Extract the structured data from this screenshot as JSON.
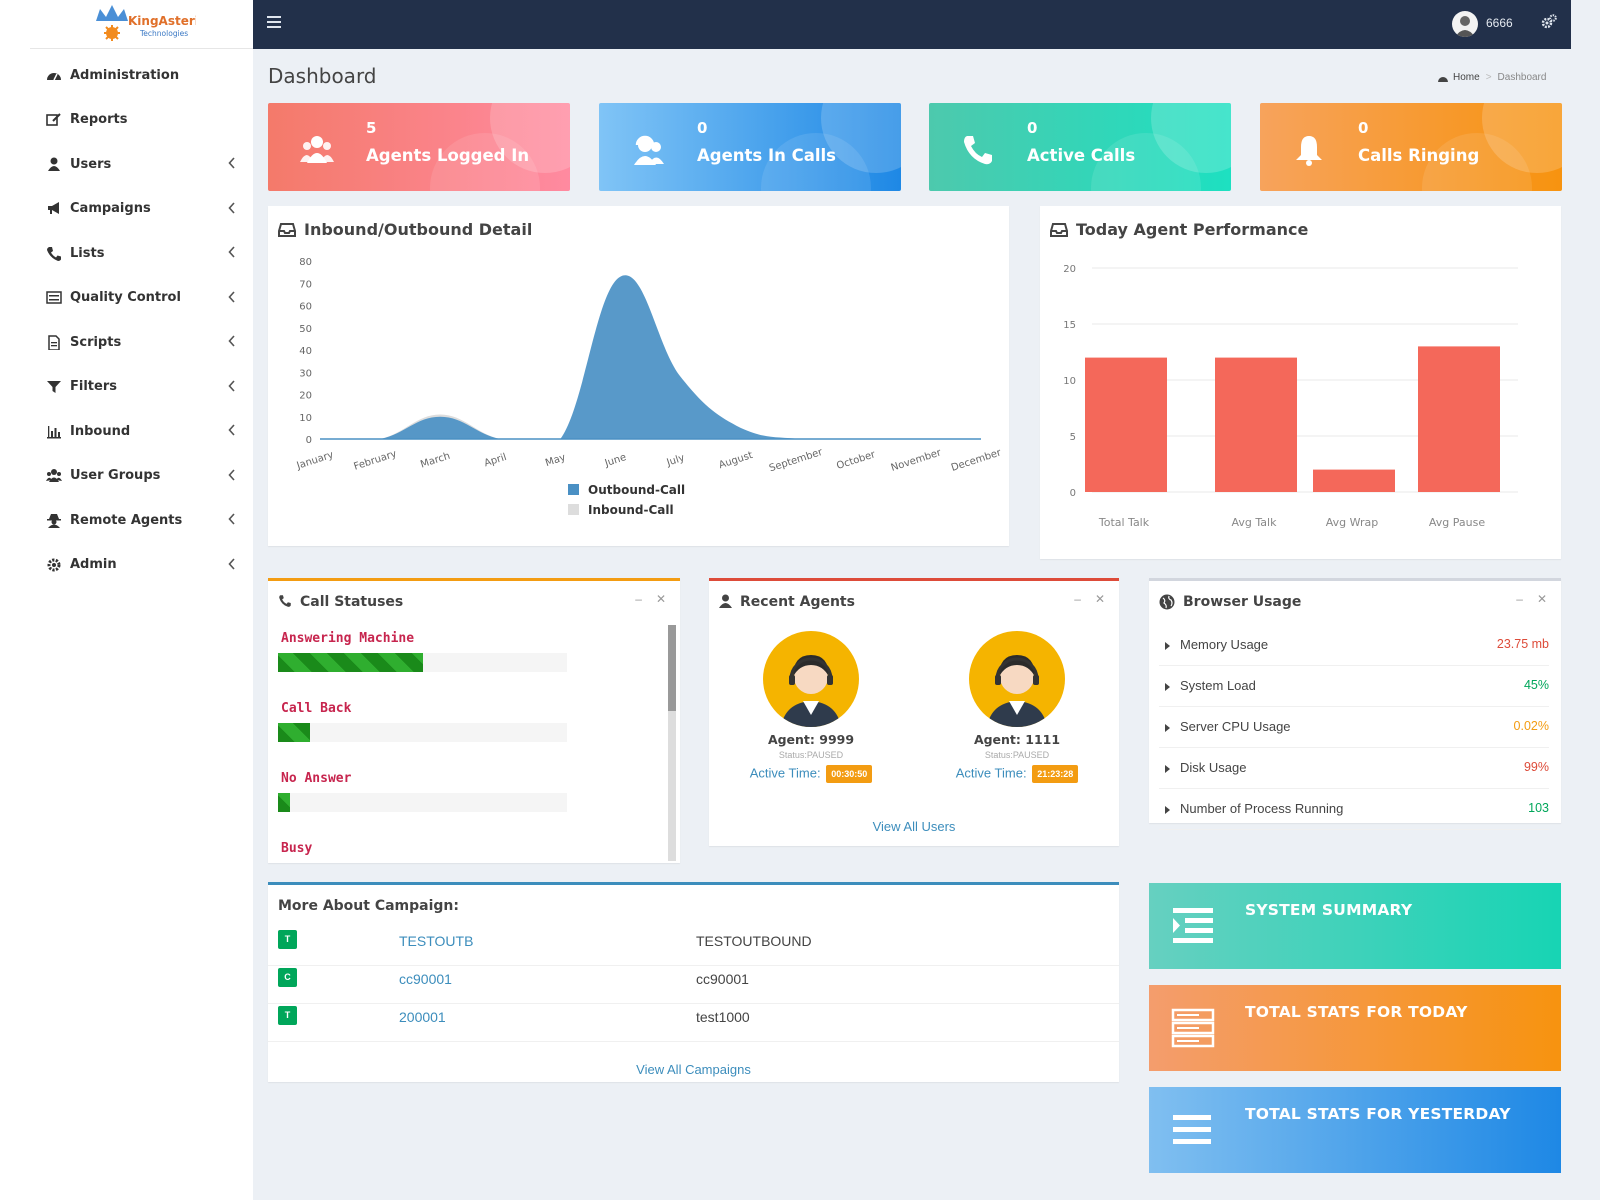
{
  "app": {
    "logo_text": "KingAsterisk",
    "logo_subtext": "Technologies",
    "user": "6666",
    "colors": {
      "topbar": "#22304a",
      "sidebar": "#ffffff",
      "link": "#3c8dbc",
      "accent_red": "#f4685a"
    }
  },
  "sidebar": {
    "items": [
      {
        "label": "Administration",
        "icon": "dashboard-icon",
        "has_submenu": false
      },
      {
        "label": "Reports",
        "icon": "edit-icon",
        "has_submenu": false
      },
      {
        "label": "Users",
        "icon": "user-icon",
        "has_submenu": true
      },
      {
        "label": "Campaigns",
        "icon": "bullhorn-icon",
        "has_submenu": true
      },
      {
        "label": "Lists",
        "icon": "phone-icon",
        "has_submenu": true
      },
      {
        "label": "Quality Control",
        "icon": "list-icon",
        "has_submenu": true
      },
      {
        "label": "Scripts",
        "icon": "file-icon",
        "has_submenu": true
      },
      {
        "label": "Filters",
        "icon": "filter-icon",
        "has_submenu": true
      },
      {
        "label": "Inbound",
        "icon": "bar-chart-icon",
        "has_submenu": true
      },
      {
        "label": "User Groups",
        "icon": "users-icon",
        "has_submenu": true
      },
      {
        "label": "Remote Agents",
        "icon": "user-secret-icon",
        "has_submenu": true
      },
      {
        "label": "Admin",
        "icon": "gear-icon",
        "has_submenu": true
      }
    ]
  },
  "header": {
    "title": "Dashboard",
    "breadcrumb": [
      "Home",
      "Dashboard"
    ]
  },
  "tiles": [
    {
      "value": "5",
      "label": "Agents Logged In",
      "icon": "users-icon"
    },
    {
      "value": "0",
      "label": "Agents In Calls",
      "icon": "support-icon"
    },
    {
      "value": "0",
      "label": "Active Calls",
      "icon": "phone-icon"
    },
    {
      "value": "0",
      "label": "Calls Ringing",
      "icon": "bell-icon"
    }
  ],
  "inout_panel": {
    "title": "Inbound/Outbound Detail"
  },
  "perf_panel": {
    "title": "Today Agent Performance"
  },
  "chart_data": [
    {
      "type": "area",
      "title": "Inbound/Outbound Detail",
      "categories": [
        "January",
        "February",
        "March",
        "April",
        "May",
        "June",
        "July",
        "August",
        "September",
        "October",
        "November",
        "December"
      ],
      "series": [
        {
          "name": "Outbound-Call",
          "values": [
            0,
            0,
            10,
            0,
            0,
            73,
            28,
            5,
            0,
            0,
            0,
            0
          ],
          "color": "#4a90c4"
        },
        {
          "name": "Inbound-Call",
          "values": [
            0,
            0,
            11,
            0,
            0,
            0,
            0,
            0,
            0,
            0,
            0,
            0
          ],
          "color": "#dddddd"
        }
      ],
      "ylim": [
        0,
        80
      ],
      "yticks": [
        0,
        10,
        20,
        30,
        40,
        50,
        60,
        70,
        80
      ],
      "legend": "bottom-center",
      "grid": false
    },
    {
      "type": "bar",
      "title": "Today Agent Performance",
      "categories": [
        "Total Talk",
        "Avg Talk",
        "Avg Wrap",
        "Avg Pause"
      ],
      "values": [
        12,
        12,
        2,
        13
      ],
      "color": "#f4685a",
      "ylim": [
        0,
        20
      ],
      "yticks": [
        0,
        5,
        10,
        15,
        20
      ],
      "grid": true
    }
  ],
  "call_statuses": {
    "title": "Call Statuses",
    "items": [
      {
        "label": "Answering Machine",
        "percent": 50
      },
      {
        "label": "Call Back",
        "percent": 11
      },
      {
        "label": "No Answer",
        "percent": 4
      },
      {
        "label": "Busy",
        "percent": 0
      }
    ]
  },
  "recent_agents": {
    "title": "Recent Agents",
    "active_label": "Active Time:",
    "agents": [
      {
        "name": "Agent: 9999",
        "status": "Status:PAUSED",
        "active_time": "00:30:50"
      },
      {
        "name": "Agent: 1111",
        "status": "Status:PAUSED",
        "active_time": "21:23:28"
      }
    ],
    "view_all": "View All Users"
  },
  "browser_usage": {
    "title": "Browser Usage",
    "rows": [
      {
        "label": "Memory Usage",
        "value": "23.75 mb",
        "color": "#dd4b39"
      },
      {
        "label": "System Load",
        "value": "45%",
        "color": "#00a65a"
      },
      {
        "label": "Server CPU Usage",
        "value": "0.02%",
        "color": "#f39c12"
      },
      {
        "label": "Disk Usage",
        "value": "99%",
        "color": "#dd4b39"
      },
      {
        "label": "Number of Process Running",
        "value": "103",
        "color": "#00a65a"
      }
    ]
  },
  "campaigns": {
    "title": "More About Campaign:",
    "rows": [
      {
        "badge": "T",
        "id": "TESTOUTB",
        "name": "TESTOUTBOUND"
      },
      {
        "badge": "C",
        "id": "cc90001",
        "name": "cc90001"
      },
      {
        "badge": "T",
        "id": "200001",
        "name": "test1000"
      }
    ],
    "view_all": "View All Campaigns"
  },
  "summary_boxes": [
    {
      "label": "SYSTEM SUMMARY",
      "icon": "indent-icon"
    },
    {
      "label": "TOTAL STATS FOR TODAY",
      "icon": "server-icon"
    },
    {
      "label": "TOTAL STATS FOR YESTERDAY",
      "icon": "bars-icon"
    }
  ]
}
